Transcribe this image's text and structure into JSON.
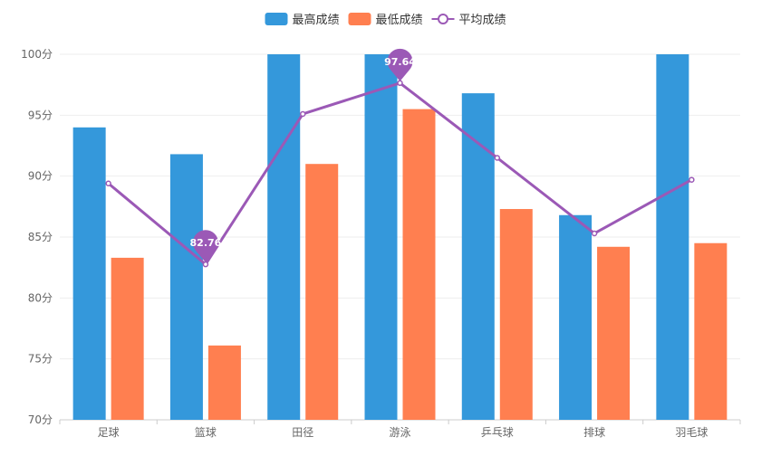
{
  "chart_data": {
    "type": "bar",
    "categories": [
      "足球",
      "篮球",
      "田径",
      "游泳",
      "乒乓球",
      "排球",
      "羽毛球"
    ],
    "y_unit_suffix": "分",
    "ylim": [
      70,
      100
    ],
    "yticks": [
      70,
      75,
      80,
      85,
      90,
      95,
      100
    ],
    "grid": true,
    "legend_position": "top-center",
    "series": [
      {
        "name": "最高成绩",
        "type": "bar",
        "color": "#3498db",
        "values": [
          94.0,
          91.8,
          100.0,
          100.0,
          96.8,
          86.8,
          100.0
        ]
      },
      {
        "name": "最低成绩",
        "type": "bar",
        "color": "#ff7f50",
        "values": [
          83.3,
          76.1,
          91.0,
          95.5,
          87.3,
          84.2,
          84.5
        ]
      },
      {
        "name": "平均成绩",
        "type": "line",
        "color": "#9b59b6",
        "values": [
          89.4,
          82.76,
          95.1,
          97.64,
          91.5,
          85.3,
          89.7
        ]
      }
    ],
    "mark_points": [
      {
        "series": "平均成绩",
        "category": "篮球",
        "label": "82.76",
        "value": 82.76
      },
      {
        "series": "平均成绩",
        "category": "游泳",
        "label": "97.64",
        "value": 97.64
      }
    ]
  }
}
